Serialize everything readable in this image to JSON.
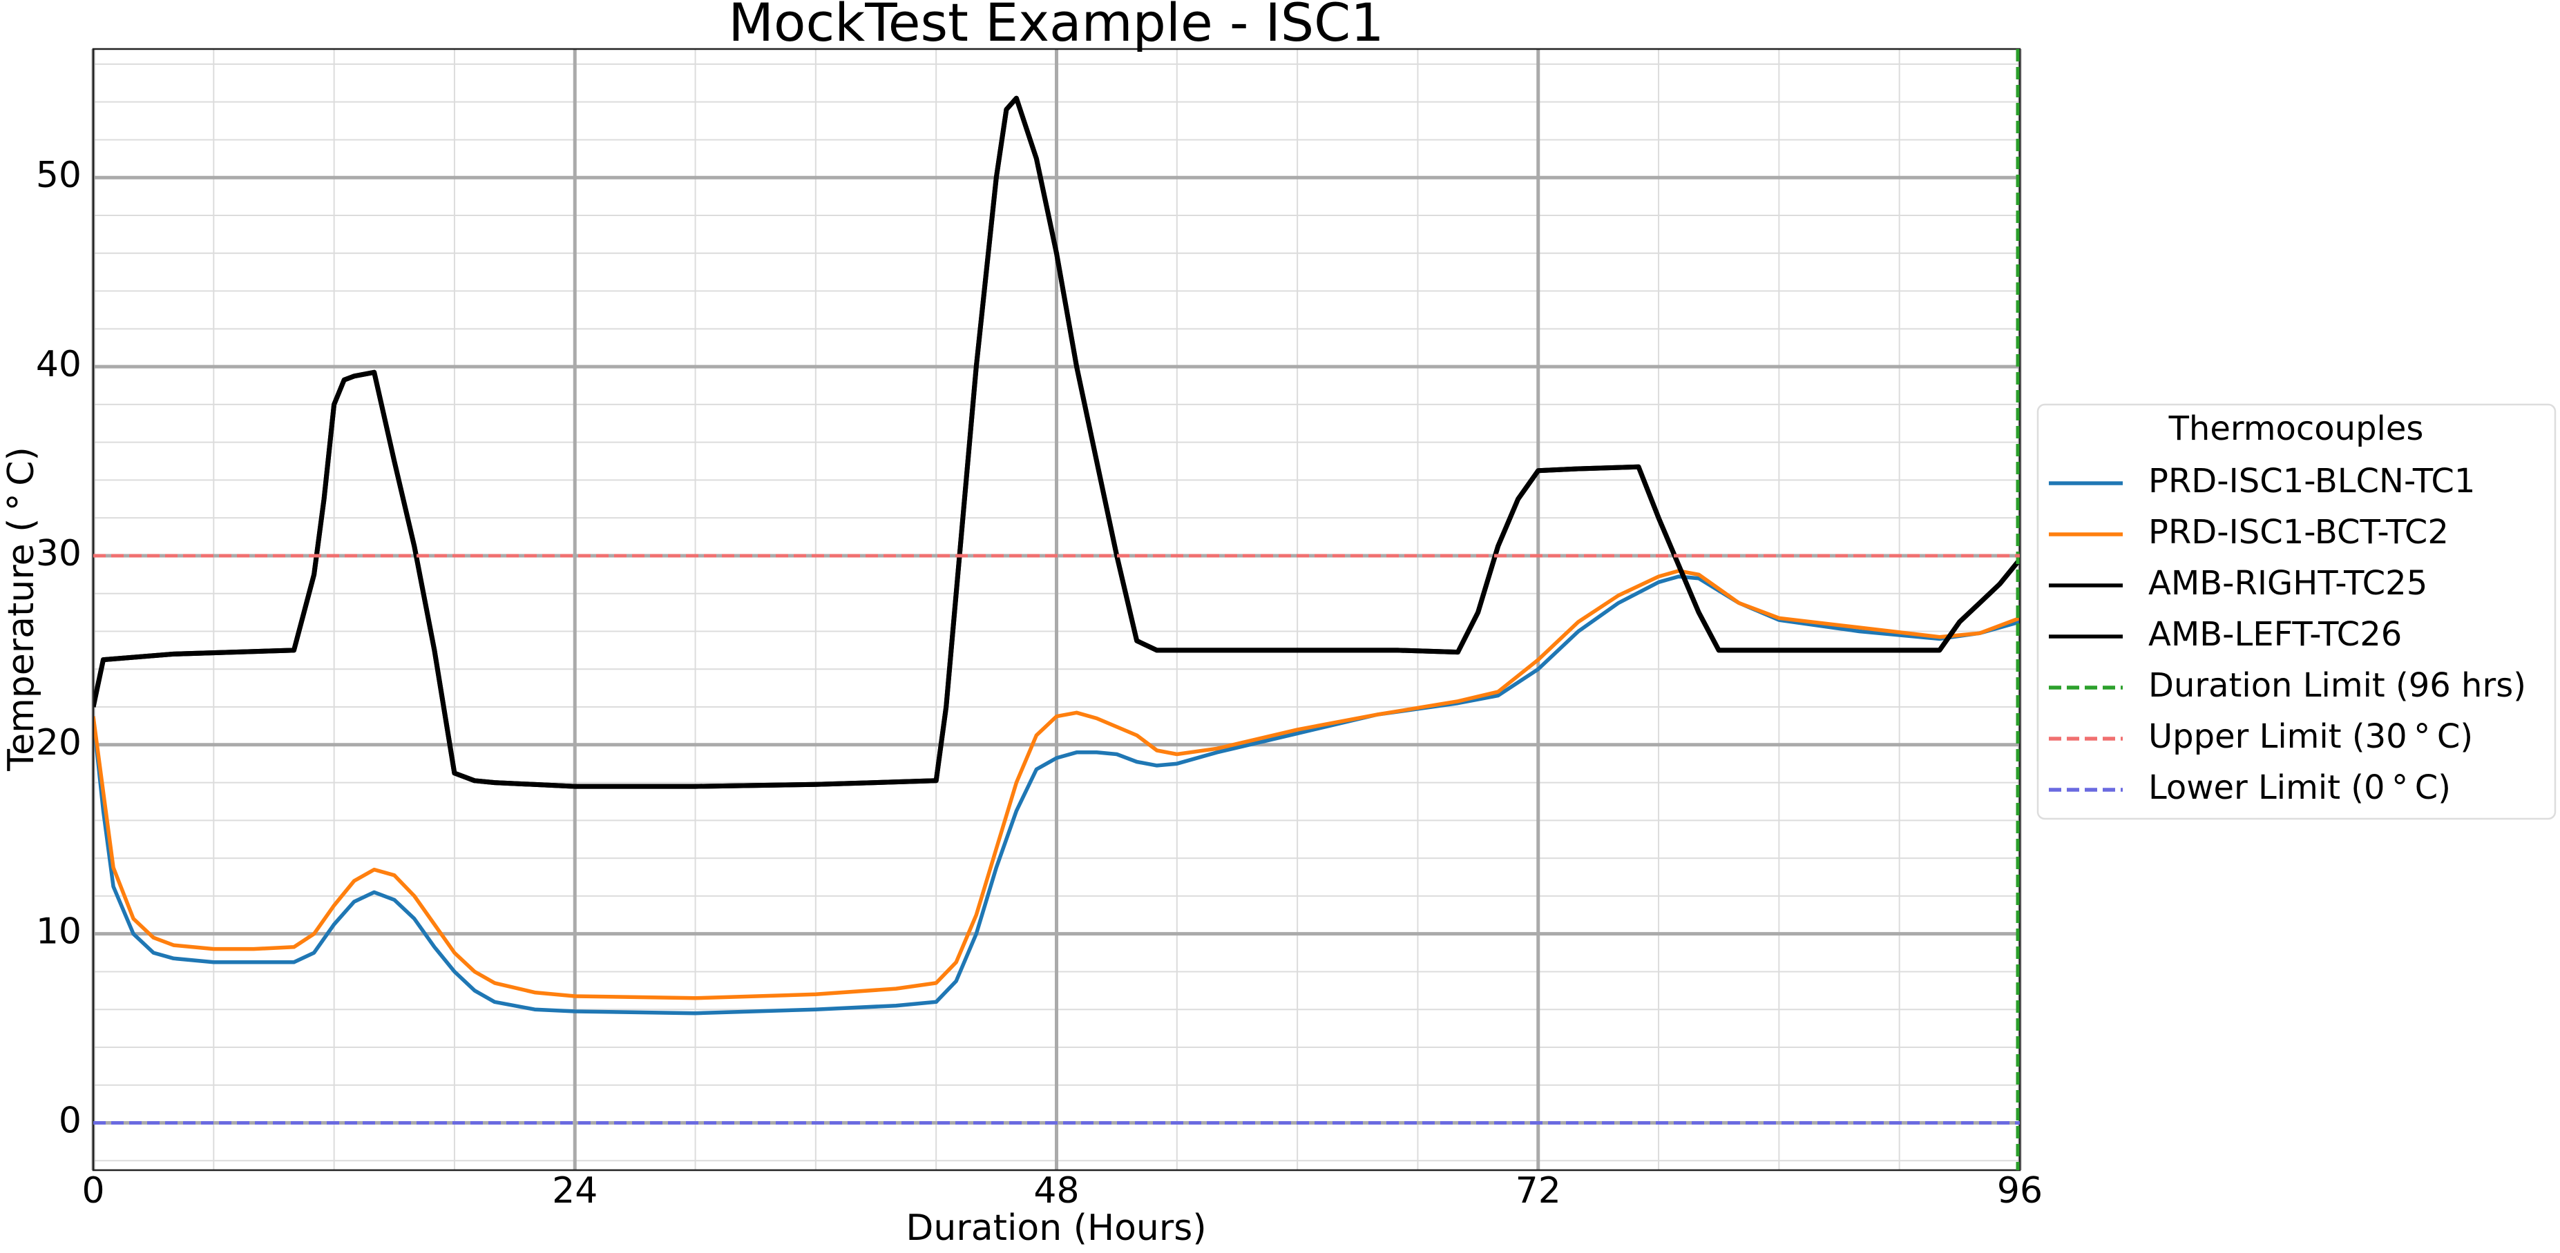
{
  "chart_data": {
    "type": "line",
    "title": "MockTest Example - ISC1",
    "x_label": "Duration (Hours)",
    "y_label": "Temperature ($^\\circ$C)",
    "xlim": [
      0,
      96
    ],
    "ylim": [
      -2.5,
      56.8
    ],
    "xticks": [
      0,
      24,
      48,
      72,
      96
    ],
    "yticks": [
      0,
      10,
      20,
      30,
      40,
      50
    ],
    "xminorticks": [
      6,
      12,
      18,
      30,
      36,
      42,
      54,
      60,
      66,
      78,
      84,
      90
    ],
    "yminorticks": [
      -2,
      2,
      4,
      6,
      8,
      12,
      14,
      16,
      18,
      22,
      24,
      26,
      28,
      32,
      34,
      36,
      38,
      42,
      44,
      46,
      48,
      52,
      54,
      56
    ],
    "grid": true,
    "legend": "outside right",
    "legend_title": "Thermocouples",
    "series": [
      {
        "name": "PRD-ISC1-BLCN-TC1",
        "color": "#1f77b4",
        "x": [
          0,
          0.5,
          1,
          2,
          3,
          4,
          6,
          10,
          11,
          12,
          13,
          14,
          15,
          16,
          17,
          18,
          19,
          20,
          22,
          24,
          30,
          36,
          40,
          42,
          43,
          44,
          45,
          46,
          47,
          48,
          49,
          50,
          51,
          52,
          53,
          54,
          56,
          60,
          64,
          68,
          70,
          72,
          74,
          76,
          78,
          79,
          80,
          82,
          84,
          88,
          92,
          94,
          96
        ],
        "values": [
          21.5,
          16.5,
          12.5,
          10,
          9,
          8.7,
          8.5,
          8.5,
          9,
          10.5,
          11.7,
          12.2,
          11.8,
          10.8,
          9.3,
          8,
          7,
          6.4,
          6,
          5.9,
          5.8,
          6,
          6.2,
          6.4,
          7.5,
          10,
          13.5,
          16.5,
          18.7,
          19.3,
          19.6,
          19.6,
          19.5,
          19.1,
          18.9,
          19,
          19.6,
          20.6,
          21.6,
          22.2,
          22.6,
          24,
          26,
          27.5,
          28.6,
          28.9,
          28.8,
          27.5,
          26.6,
          26,
          25.6,
          25.9,
          26.5
        ]
      },
      {
        "name": "PRD-ISC1-BCT-TC2",
        "color": "#ff7f0e",
        "x": [
          0,
          0.5,
          1,
          2,
          3,
          4,
          6,
          8,
          10,
          11,
          12,
          13,
          14,
          15,
          16,
          17,
          18,
          19,
          20,
          22,
          24,
          30,
          36,
          40,
          42,
          43,
          44,
          45,
          46,
          47,
          48,
          49,
          50,
          52,
          53,
          54,
          56,
          60,
          64,
          68,
          70,
          72,
          74,
          76,
          78,
          79,
          80,
          82,
          84,
          88,
          92,
          94,
          96
        ],
        "values": [
          21.5,
          17.5,
          13.5,
          10.8,
          9.8,
          9.4,
          9.2,
          9.2,
          9.3,
          10,
          11.5,
          12.8,
          13.4,
          13.1,
          12,
          10.5,
          9,
          8,
          7.4,
          6.9,
          6.7,
          6.6,
          6.8,
          7.1,
          7.4,
          8.5,
          11,
          14.5,
          18,
          20.5,
          21.5,
          21.7,
          21.4,
          20.5,
          19.7,
          19.5,
          19.8,
          20.8,
          21.6,
          22.3,
          22.8,
          24.5,
          26.5,
          27.9,
          28.9,
          29.2,
          29,
          27.5,
          26.7,
          26.2,
          25.7,
          25.9,
          26.7
        ]
      },
      {
        "name": "AMB-RIGHT-TC25",
        "color": "#000000",
        "x": [
          0,
          0.5,
          4,
          10,
          11,
          11.5,
          12,
          12.5,
          13,
          14,
          15,
          16,
          17,
          18,
          19,
          20,
          24,
          30,
          36,
          42,
          42.5,
          43,
          44,
          45,
          45.5,
          46,
          47,
          48,
          49,
          50,
          51,
          52,
          53,
          60,
          65,
          68,
          69,
          70,
          71,
          72,
          74,
          77,
          78,
          79,
          80,
          81,
          84,
          88,
          92,
          93,
          94,
          95,
          96
        ],
        "values": [
          22,
          24.5,
          24.8,
          25,
          29,
          33,
          38,
          39.3,
          39.5,
          39.7,
          35,
          30.5,
          25,
          18.5,
          18.1,
          18,
          17.8,
          17.8,
          17.9,
          18.1,
          22,
          28,
          40,
          50,
          53.6,
          54.2,
          51,
          46,
          40,
          35,
          30,
          25.5,
          25,
          25,
          25,
          24.9,
          27,
          30.5,
          33,
          34.5,
          34.6,
          34.7,
          32,
          29.5,
          27,
          25,
          25,
          25,
          25,
          26.5,
          27.5,
          28.5,
          29.8
        ]
      },
      {
        "name": "AMB-LEFT-TC26",
        "color": "#000000",
        "x": [
          0,
          0.5,
          4,
          10,
          11,
          11.5,
          12,
          12.5,
          13,
          14,
          15,
          16,
          17,
          18,
          19,
          20,
          24,
          30,
          36,
          42,
          42.5,
          43,
          44,
          45,
          45.5,
          46,
          47,
          48,
          49,
          50,
          51,
          52,
          53,
          60,
          65,
          68,
          69,
          70,
          71,
          72,
          74,
          77,
          78,
          79,
          80,
          81,
          84,
          88,
          92,
          93,
          94,
          95,
          96
        ],
        "values": [
          22,
          24.5,
          24.8,
          25,
          29,
          33,
          38,
          39.3,
          39.5,
          39.7,
          35,
          30.5,
          25,
          18.5,
          18.1,
          18,
          17.8,
          17.8,
          17.9,
          18.1,
          22,
          28,
          40,
          50,
          53.6,
          54.2,
          51,
          46,
          40,
          35,
          30,
          25.5,
          25,
          25,
          25,
          24.9,
          27,
          30.5,
          33,
          34.5,
          34.6,
          34.7,
          32,
          29.5,
          27,
          25,
          25,
          25,
          25,
          26.5,
          27.5,
          28.5,
          29.8
        ]
      }
    ],
    "reference_lines": [
      {
        "name": "Duration Limit (96 hrs)",
        "color": "#2ca02c",
        "orientation": "vertical",
        "value": 96
      },
      {
        "name": "Upper Limit (30$^\\circ$C)",
        "color": "#f07070",
        "orientation": "horizontal",
        "value": 30
      },
      {
        "name": "Lower Limit (0$^\\circ$C)",
        "color": "#6a6ae0",
        "orientation": "horizontal",
        "value": 0
      }
    ]
  }
}
